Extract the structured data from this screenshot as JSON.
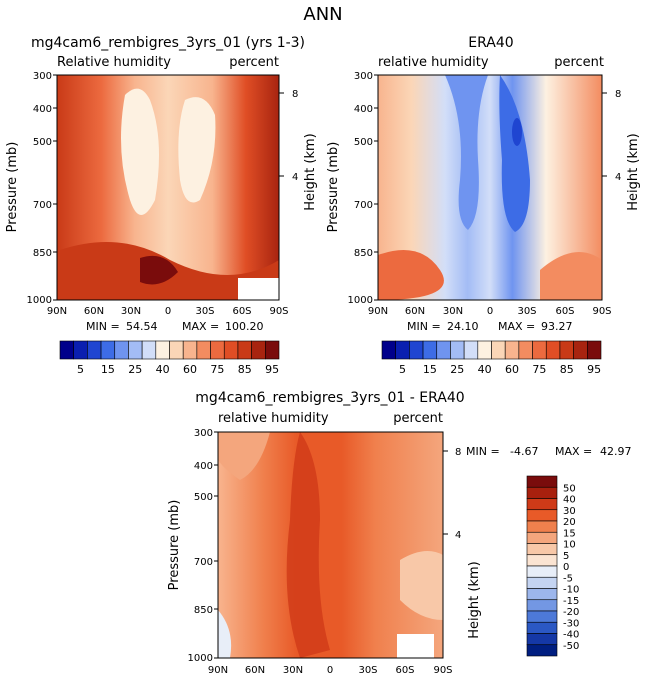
{
  "page": {
    "main_title": "ANN"
  },
  "chart_data": [
    {
      "type": "heatmap",
      "title": "mg4cam6_rembigres_3yrs_01 (yrs 1-3)",
      "subtitle_left": "Relative humidity",
      "subtitle_right": "percent",
      "ylabel": "Pressure (mb)",
      "y2label": "Height (km)",
      "x_ticks": [
        "90N",
        "60N",
        "30N",
        "0",
        "30S",
        "60S",
        "90S"
      ],
      "y_ticks": [
        "300",
        "400",
        "500",
        "700",
        "850",
        "1000"
      ],
      "y2_ticks": [
        "8",
        "4"
      ],
      "ylim": [
        1000,
        300
      ],
      "stats": {
        "min_label": "MIN =",
        "min": "54.54",
        "max_label": "MAX =",
        "max": "100.20"
      }
    },
    {
      "type": "heatmap",
      "title": "ERA40",
      "subtitle_left": "relative humidity",
      "subtitle_right": "percent",
      "ylabel": "Pressure (mb)",
      "y2label": "Height (km)",
      "x_ticks": [
        "90N",
        "60N",
        "30N",
        "0",
        "30S",
        "60S",
        "90S"
      ],
      "y_ticks": [
        "300",
        "400",
        "500",
        "700",
        "850",
        "1000"
      ],
      "y2_ticks": [
        "8",
        "4"
      ],
      "ylim": [
        1000,
        300
      ],
      "stats": {
        "min_label": "MIN =",
        "min": "24.10",
        "max_label": "MAX =",
        "max": "93.27"
      }
    },
    {
      "type": "heatmap",
      "title": "mg4cam6_rembigres_3yrs_01 - ERA40",
      "subtitle_left": "relative humidity",
      "subtitle_right": "percent",
      "ylabel": "Pressure (mb)",
      "y2label": "Height (km)",
      "x_ticks": [
        "90N",
        "60N",
        "30N",
        "0",
        "30S",
        "60S",
        "90S"
      ],
      "y_ticks": [
        "300",
        "400",
        "500",
        "700",
        "850",
        "1000"
      ],
      "y2_ticks": [
        "8",
        "4"
      ],
      "ylim": [
        1000,
        300
      ],
      "stats": {
        "min_label": "MIN =",
        "min": "-4.67",
        "max_label": "MAX =",
        "max": "42.97"
      }
    }
  ],
  "colorbar_top": {
    "colors": [
      "#00008b",
      "#0a1fb0",
      "#1f45d1",
      "#3d6ce6",
      "#6f94f0",
      "#a3bcf5",
      "#d2def8",
      "#fdf1e1",
      "#fbd6b7",
      "#f8b48e",
      "#f38c60",
      "#ec6a3f",
      "#e04e25",
      "#c93a17",
      "#a82410",
      "#7a0c0c"
    ],
    "labels": [
      "5",
      "15",
      "25",
      "40",
      "60",
      "75",
      "85",
      "95"
    ]
  },
  "colorbar_diff": {
    "colors": [
      "#7a0c0c",
      "#a8200e",
      "#cf3a18",
      "#e85a28",
      "#f0804d",
      "#f4a67d",
      "#f8c8a8",
      "#fbe4d2",
      "#e8eef8",
      "#c4d4f2",
      "#9cb6ec",
      "#7397e3",
      "#4d79d8",
      "#2b58c4",
      "#1538a6",
      "#001e80"
    ],
    "labels": [
      "50",
      "40",
      "30",
      "20",
      "15",
      "10",
      "5",
      "0",
      "-5",
      "-10",
      "-15",
      "-20",
      "-30",
      "-40",
      "-50"
    ]
  }
}
